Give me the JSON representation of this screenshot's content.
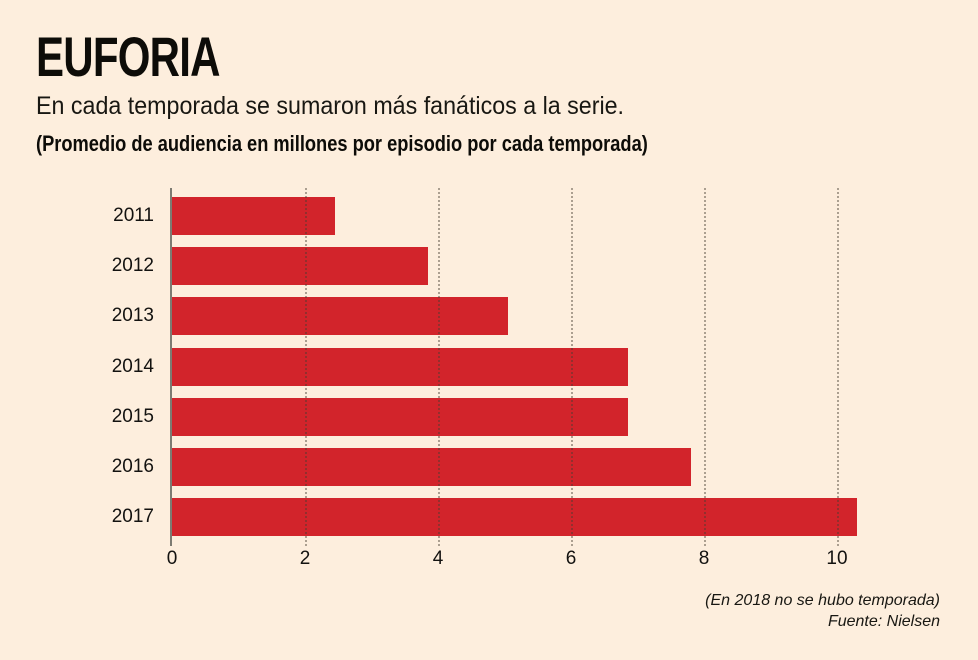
{
  "page": {
    "background_color": "#fdeedd",
    "text_color": "#0d0c08"
  },
  "header": {
    "title": "EUFORIA",
    "subtitle": "En cada temporada se sumaron más fanáticos a la serie.",
    "unit_note": "(Promedio de audiencia en millones por episodio por cada temporada)"
  },
  "chart_data": {
    "type": "bar",
    "orientation": "horizontal",
    "title": "EUFORIA",
    "subtitle": "En cada temporada se sumaron más fanáticos a la serie.",
    "unit_label": "(Promedio de audiencia en millones por episodio por cada temporada)",
    "categories": [
      "2011",
      "2012",
      "2013",
      "2014",
      "2015",
      "2016",
      "2017"
    ],
    "values": [
      2.45,
      3.85,
      5.05,
      6.85,
      6.85,
      7.8,
      10.3
    ],
    "x_ticks": [
      0,
      2,
      4,
      6,
      8,
      10
    ],
    "xlim": [
      0,
      11.55
    ],
    "grid": "vertical-dotted",
    "legend": "none",
    "bar_color": "#d2242b",
    "axis_line_color": "#7d7b72"
  },
  "footer": {
    "note": "(En 2018 no se hubo temporada)",
    "source": "Fuente: Nielsen"
  }
}
